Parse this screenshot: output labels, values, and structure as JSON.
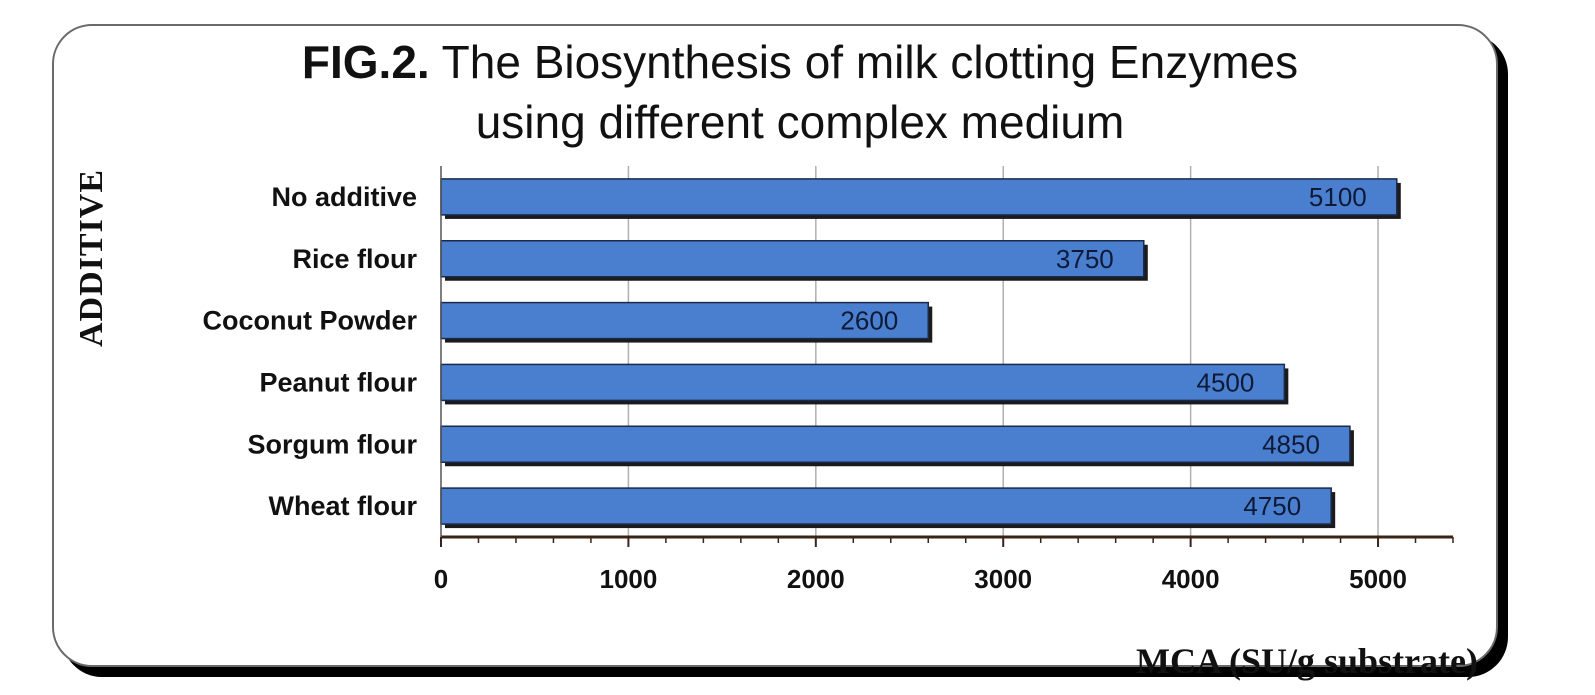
{
  "chart_data": {
    "type": "bar",
    "orientation": "horizontal",
    "title_prefix": "FIG.2.",
    "title_line1": "The Biosynthesis of milk clotting Enzymes",
    "title_line2": "using different complex medium",
    "xlabel": "MCA (SU/g substrate)",
    "ylabel": "ADDITIVE",
    "categories": [
      "No additive",
      "Rice flour",
      "Coconut Powder",
      "Peanut flour",
      "Sorgum flour",
      "Wheat flour"
    ],
    "values": [
      5100,
      3750,
      2600,
      4500,
      4850,
      4750
    ],
    "data_labels": [
      "5100",
      "3750",
      "2600",
      "4500",
      "4850",
      "4750"
    ],
    "xlim": [
      0,
      5400
    ],
    "xticks": [
      "0",
      "1000",
      "2000",
      "3000",
      "4000",
      "5000"
    ],
    "grid": true,
    "bar_color": "#4a7fd0",
    "bar_edge_color": "#1a2a4a"
  }
}
